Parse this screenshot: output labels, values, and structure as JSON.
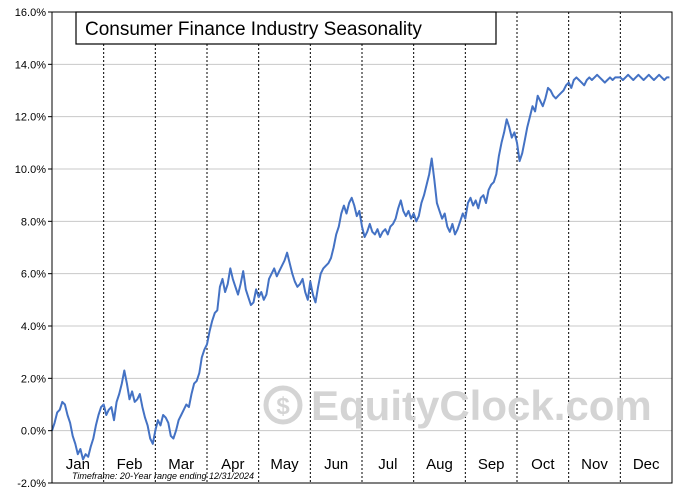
{
  "chart_data": {
    "type": "line",
    "title": "Consumer Finance Industry Seasonality",
    "footnote": "Timeframe: 20-Year range ending 12/31/2024",
    "watermark": "EquityClock.com",
    "xlabel": "",
    "ylabel": "",
    "ylim": [
      -2.0,
      16.0
    ],
    "yticks": [
      "16.0%",
      "14.0%",
      "12.0%",
      "10.0%",
      "8.0%",
      "6.0%",
      "4.0%",
      "2.0%",
      "0.0%",
      "-2.0%"
    ],
    "ytick_values": [
      16,
      14,
      12,
      10,
      8,
      6,
      4,
      2,
      0,
      -2
    ],
    "months": [
      "Jan",
      "Feb",
      "Mar",
      "Apr",
      "May",
      "Jun",
      "Jul",
      "Aug",
      "Sep",
      "Oct",
      "Nov",
      "Dec"
    ],
    "grid": true,
    "line_color": "#4472c4",
    "series": [
      {
        "name": "",
        "x": [
          0,
          0.05,
          0.1,
          0.15,
          0.2,
          0.25,
          0.3,
          0.35,
          0.4,
          0.45,
          0.5,
          0.55,
          0.6,
          0.65,
          0.7,
          0.75,
          0.8,
          0.85,
          0.9,
          0.95,
          1.0,
          1.05,
          1.1,
          1.15,
          1.2,
          1.25,
          1.3,
          1.35,
          1.4,
          1.45,
          1.5,
          1.55,
          1.6,
          1.65,
          1.7,
          1.75,
          1.8,
          1.85,
          1.9,
          1.95,
          2.0,
          2.05,
          2.1,
          2.15,
          2.2,
          2.25,
          2.3,
          2.35,
          2.4,
          2.45,
          2.5,
          2.55,
          2.6,
          2.65,
          2.7,
          2.75,
          2.8,
          2.85,
          2.9,
          2.95,
          3.0,
          3.05,
          3.1,
          3.15,
          3.2,
          3.25,
          3.3,
          3.35,
          3.4,
          3.45,
          3.5,
          3.55,
          3.6,
          3.65,
          3.7,
          3.75,
          3.8,
          3.85,
          3.9,
          3.95,
          4.0,
          4.05,
          4.1,
          4.15,
          4.2,
          4.25,
          4.3,
          4.35,
          4.4,
          4.45,
          4.5,
          4.55,
          4.6,
          4.65,
          4.7,
          4.75,
          4.8,
          4.85,
          4.9,
          4.95,
          5.0,
          5.05,
          5.1,
          5.15,
          5.2,
          5.25,
          5.3,
          5.35,
          5.4,
          5.45,
          5.5,
          5.55,
          5.6,
          5.65,
          5.7,
          5.75,
          5.8,
          5.85,
          5.9,
          5.95,
          6.0,
          6.05,
          6.1,
          6.15,
          6.2,
          6.25,
          6.3,
          6.35,
          6.4,
          6.45,
          6.5,
          6.55,
          6.6,
          6.65,
          6.7,
          6.75,
          6.8,
          6.85,
          6.9,
          6.95,
          7.0,
          7.05,
          7.1,
          7.15,
          7.2,
          7.25,
          7.3,
          7.35,
          7.4,
          7.45,
          7.5,
          7.55,
          7.6,
          7.65,
          7.7,
          7.75,
          7.8,
          7.85,
          7.9,
          7.95,
          8.0,
          8.05,
          8.1,
          8.15,
          8.2,
          8.25,
          8.3,
          8.35,
          8.4,
          8.45,
          8.5,
          8.55,
          8.6,
          8.65,
          8.7,
          8.75,
          8.8,
          8.85,
          8.9,
          8.95,
          9.0,
          9.05,
          9.1,
          9.15,
          9.2,
          9.25,
          9.3,
          9.35,
          9.4,
          9.45,
          9.5,
          9.55,
          9.6,
          9.65,
          9.7,
          9.75,
          9.8,
          9.85,
          9.9,
          9.95,
          10.0,
          10.05,
          10.1,
          10.15,
          10.2,
          10.25,
          10.3,
          10.35,
          10.4,
          10.45,
          10.5,
          10.55,
          10.6,
          10.65,
          10.7,
          10.75,
          10.8,
          10.85,
          10.9,
          10.95,
          11.0,
          11.05,
          11.1,
          11.15,
          11.2,
          11.25,
          11.3,
          11.35,
          11.4,
          11.45,
          11.5,
          11.55,
          11.6,
          11.65,
          11.7,
          11.75,
          11.8,
          11.85,
          11.9,
          11.95
        ],
        "values": [
          0.0,
          0.3,
          0.7,
          0.8,
          1.1,
          1.0,
          0.6,
          0.3,
          -0.2,
          -0.5,
          -0.9,
          -0.7,
          -1.1,
          -0.9,
          -1.0,
          -0.6,
          -0.3,
          0.2,
          0.6,
          0.9,
          1.0,
          0.6,
          0.8,
          0.9,
          0.4,
          1.1,
          1.4,
          1.8,
          2.3,
          1.8,
          1.2,
          1.5,
          1.1,
          1.2,
          1.4,
          0.9,
          0.5,
          0.2,
          -0.3,
          -0.5,
          0.0,
          0.4,
          0.2,
          0.6,
          0.5,
          0.3,
          -0.2,
          -0.3,
          0.0,
          0.4,
          0.6,
          0.8,
          1.0,
          0.9,
          1.4,
          1.8,
          1.9,
          2.2,
          2.8,
          3.1,
          3.3,
          3.8,
          4.2,
          4.5,
          4.6,
          5.5,
          5.8,
          5.3,
          5.6,
          6.2,
          5.8,
          5.5,
          5.2,
          5.6,
          6.1,
          5.4,
          5.1,
          4.8,
          4.9,
          5.4,
          5.1,
          5.3,
          5.0,
          5.2,
          5.8,
          6.0,
          6.2,
          5.9,
          6.1,
          6.3,
          6.5,
          6.8,
          6.4,
          6.0,
          5.7,
          5.5,
          5.6,
          5.8,
          5.3,
          5.0,
          5.7,
          5.2,
          4.9,
          5.5,
          6.0,
          6.2,
          6.3,
          6.4,
          6.6,
          7.0,
          7.5,
          7.8,
          8.3,
          8.6,
          8.3,
          8.7,
          8.9,
          8.6,
          8.2,
          8.4,
          7.8,
          7.4,
          7.6,
          7.9,
          7.6,
          7.5,
          7.7,
          7.4,
          7.6,
          7.7,
          7.5,
          7.8,
          7.9,
          8.1,
          8.5,
          8.8,
          8.4,
          8.2,
          8.4,
          8.1,
          8.3,
          8.0,
          8.2,
          8.7,
          9.0,
          9.4,
          9.8,
          10.4,
          9.6,
          8.7,
          8.4,
          8.1,
          8.3,
          7.8,
          7.6,
          7.9,
          7.5,
          7.7,
          8.0,
          8.3,
          8.1,
          8.7,
          8.9,
          8.6,
          8.8,
          8.5,
          8.9,
          9.0,
          8.7,
          9.2,
          9.4,
          9.5,
          9.8,
          10.5,
          11.0,
          11.4,
          11.9,
          11.6,
          11.2,
          11.4,
          11.0,
          10.3,
          10.6,
          11.1,
          11.6,
          12.0,
          12.4,
          12.2,
          12.8,
          12.6,
          12.4,
          12.7,
          13.1,
          13.0,
          12.8,
          12.7,
          12.8,
          12.9,
          13.0,
          13.2,
          13.3,
          13.1,
          13.4,
          13.5,
          13.4,
          13.3,
          13.2,
          13.4,
          13.5,
          13.4,
          13.5,
          13.6,
          13.5,
          13.4,
          13.3,
          13.4,
          13.5,
          13.4,
          13.5,
          13.5,
          13.5,
          13.4,
          13.5,
          13.6,
          13.5,
          13.4,
          13.5,
          13.6,
          13.5,
          13.4,
          13.5,
          13.6,
          13.5,
          13.4,
          13.5,
          13.6,
          13.5,
          13.4,
          13.5,
          13.5
        ]
      }
    ]
  }
}
